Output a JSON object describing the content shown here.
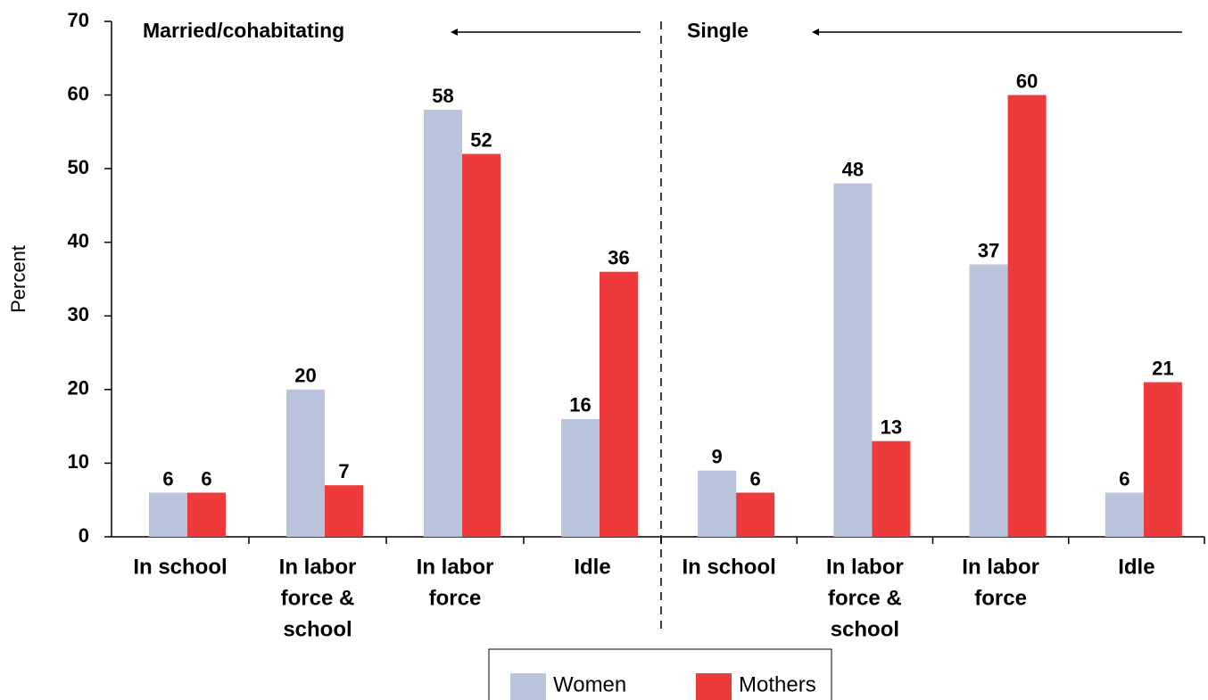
{
  "chart_data": {
    "type": "bar",
    "ylabel": "Percent",
    "ylim": [
      0,
      70
    ],
    "yticks": [
      0,
      10,
      20,
      30,
      40,
      50,
      60,
      70
    ],
    "series": [
      {
        "name": "Women",
        "color": "#b9c3dc"
      },
      {
        "name": "Mothers",
        "color": "#ee3a3a"
      }
    ],
    "panels": [
      {
        "title": "Married/cohabitating",
        "categories": [
          [
            "In school"
          ],
          [
            "In labor",
            "force &",
            "school"
          ],
          [
            "In labor",
            "force"
          ],
          [
            "Idle"
          ]
        ],
        "values": [
          [
            6,
            20,
            58,
            16
          ],
          [
            6,
            7,
            52,
            36
          ]
        ]
      },
      {
        "title": "Single",
        "categories": [
          [
            "In school"
          ],
          [
            "In labor",
            "force &",
            "school"
          ],
          [
            "In labor",
            "force"
          ],
          [
            "Idle"
          ]
        ],
        "values": [
          [
            9,
            48,
            37,
            6
          ],
          [
            6,
            13,
            60,
            21
          ]
        ]
      }
    ]
  }
}
